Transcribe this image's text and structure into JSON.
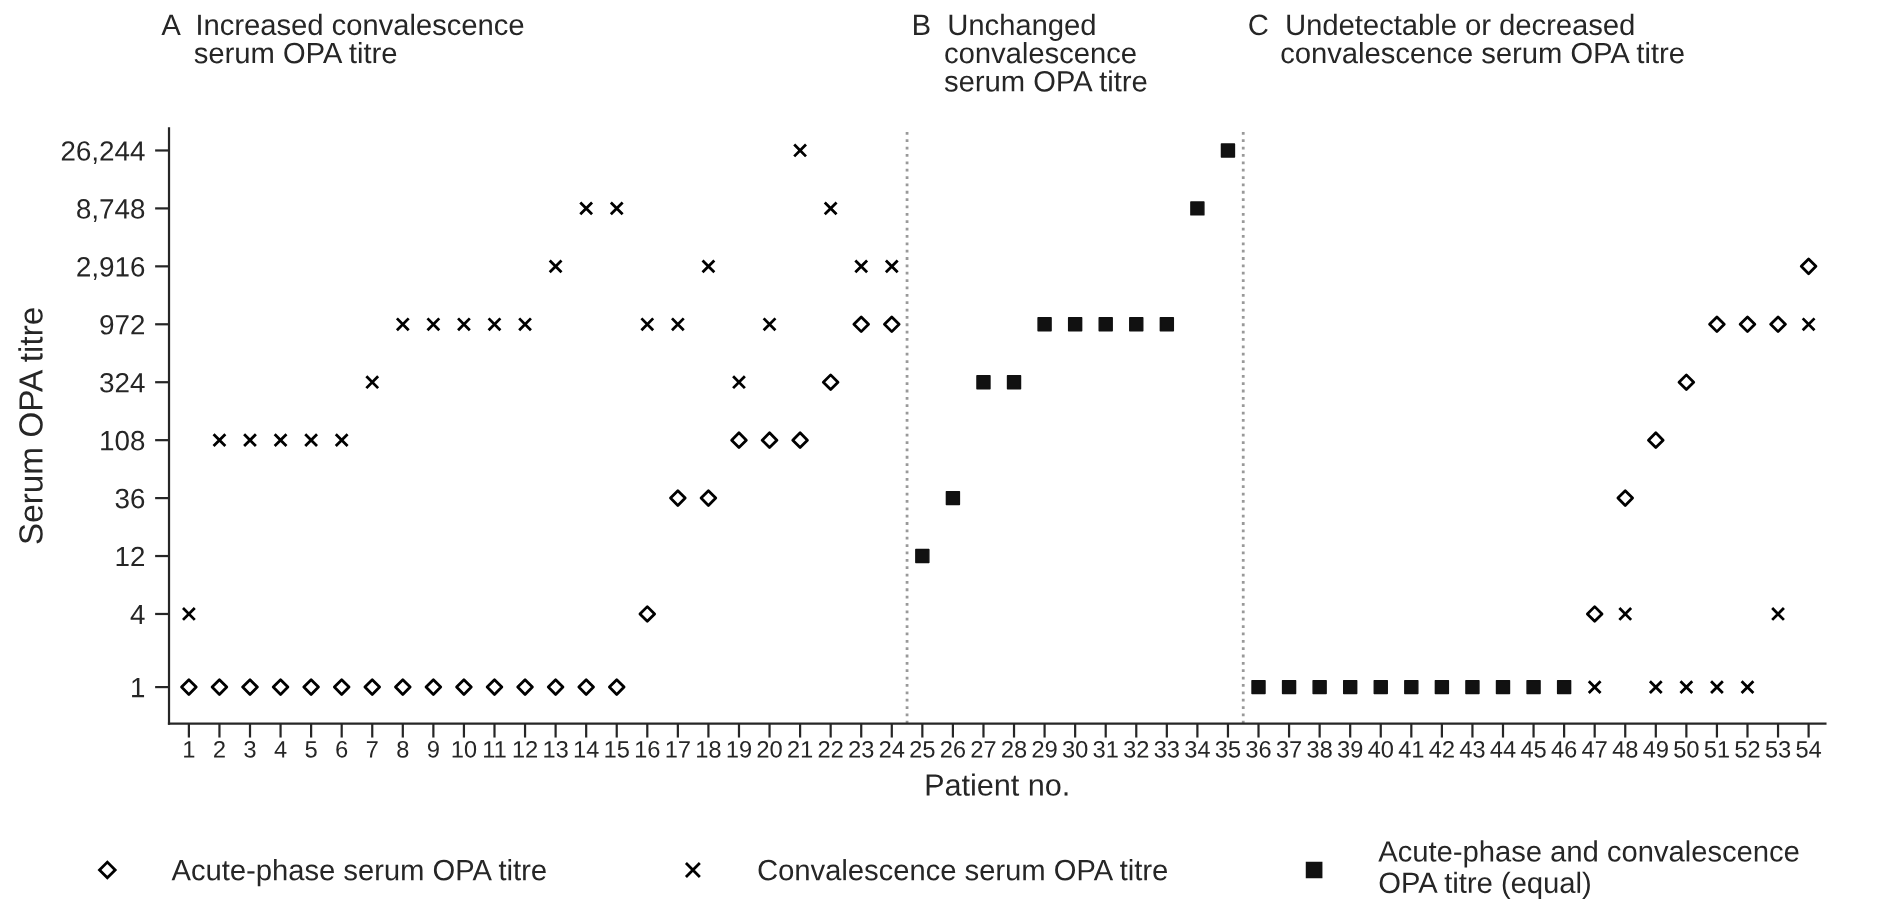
{
  "chart_data": {
    "type": "scatter",
    "ylabel": "Serum OPA titre",
    "xlabel": "Patient no.",
    "annotations": [
      "A  Increased convalescence\n    serum OPA titre",
      "B  Unchanged\n    convalescence\n    serum OPA titre",
      "C  Undetectable or decreased\n    convalescence serum OPA titre"
    ],
    "x": [
      1,
      2,
      3,
      4,
      5,
      6,
      7,
      8,
      9,
      10,
      11,
      12,
      13,
      14,
      15,
      16,
      17,
      18,
      19,
      20,
      21,
      22,
      23,
      24,
      25,
      26,
      27,
      28,
      29,
      30,
      31,
      32,
      33,
      34,
      35,
      36,
      37,
      38,
      39,
      40,
      41,
      42,
      43,
      44,
      45,
      46,
      47,
      48,
      49,
      50,
      51,
      52,
      53,
      54
    ],
    "series": [
      {
        "name": "Acute-phase serum OPA titre",
        "color": "#000000",
        "marker": "diamond",
        "values": [
          1,
          1,
          1,
          1,
          1,
          1,
          1,
          1,
          1,
          1,
          1,
          1,
          1,
          1,
          1,
          4,
          36,
          36,
          108,
          108,
          108,
          324,
          972,
          972,
          null,
          null,
          null,
          null,
          null,
          null,
          null,
          null,
          null,
          null,
          null,
          null,
          null,
          null,
          null,
          null,
          null,
          null,
          null,
          null,
          null,
          null,
          4,
          36,
          108,
          324,
          972,
          972,
          972,
          2916
        ]
      },
      {
        "name": "Convalescence serum OPA titre",
        "color": "#000000",
        "marker": "cross",
        "values": [
          4,
          108,
          108,
          108,
          108,
          108,
          324,
          972,
          972,
          972,
          972,
          972,
          2916,
          8748,
          8748,
          972,
          972,
          2916,
          324,
          972,
          26244,
          8748,
          2916,
          2916,
          null,
          null,
          null,
          null,
          null,
          null,
          null,
          null,
          null,
          null,
          null,
          null,
          null,
          null,
          null,
          null,
          null,
          null,
          null,
          null,
          null,
          null,
          1,
          4,
          1,
          1,
          1,
          1,
          4,
          972
        ]
      },
      {
        "name": "Acute-phase and convalescence\nOPA titre (equal)",
        "color": "#111111",
        "marker": "square",
        "values": [
          null,
          null,
          null,
          null,
          null,
          null,
          null,
          null,
          null,
          null,
          null,
          null,
          null,
          null,
          null,
          null,
          null,
          null,
          null,
          null,
          null,
          null,
          null,
          null,
          12,
          36,
          324,
          324,
          972,
          972,
          972,
          972,
          972,
          8748,
          26244,
          1,
          1,
          1,
          1,
          1,
          1,
          1,
          1,
          1,
          1,
          1,
          null,
          null,
          null,
          null,
          null,
          null,
          null,
          null
        ]
      }
    ],
    "log": "y",
    "ylim": [
      0.5,
      40000
    ],
    "yticks": [
      1,
      4,
      12,
      36,
      108,
      324,
      972,
      {
        "value": 2916,
        "label": "2,916"
      },
      {
        "value": 8748,
        "label": "8,748"
      },
      {
        "value": 26244,
        "label": "26,244"
      }
    ],
    "xlim": [
      0.35,
      54.55
    ],
    "xticks": [
      1,
      2,
      3,
      4,
      5,
      6,
      7,
      8,
      9,
      10,
      11,
      12,
      13,
      14,
      15,
      16,
      17,
      18,
      19,
      20,
      21,
      22,
      23,
      24,
      25,
      26,
      27,
      28,
      29,
      30,
      31,
      32,
      33,
      34,
      35,
      36,
      37,
      38,
      39,
      40,
      41,
      42,
      43,
      44,
      45,
      46,
      47,
      48,
      49,
      50,
      51,
      52,
      53,
      54
    ],
    "ref_lines": [
      {
        "axis": "x",
        "value": 24.5,
        "label": null,
        "color": "#999999",
        "line_style": "dotted"
      },
      {
        "axis": "x",
        "value": 35.5,
        "label": null,
        "color": "#999999",
        "line_style": "dotted"
      }
    ],
    "grid": false,
    "legend": "bottom"
  }
}
